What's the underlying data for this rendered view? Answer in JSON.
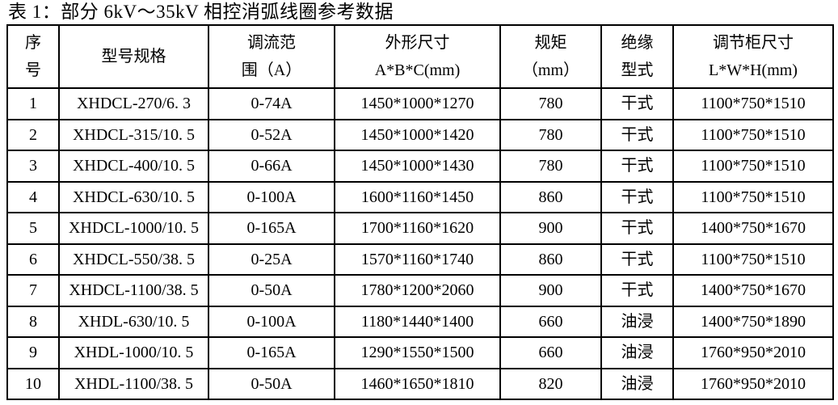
{
  "title": "表 1：部分 6kV～35kV 相控消弧线圈参考数据",
  "table": {
    "headers": [
      {
        "line1": "序",
        "line2": "号"
      },
      {
        "line1": "型号规格",
        "line2": ""
      },
      {
        "line1": "调流范",
        "line2": "围（A）"
      },
      {
        "line1": "外形尺寸",
        "line2": "A*B*C(mm)"
      },
      {
        "line1": "规矩",
        "line2": "（mm）"
      },
      {
        "line1": "绝缘",
        "line2": "型式"
      },
      {
        "line1": "调节柜尺寸",
        "line2": "L*W*H(mm)"
      }
    ],
    "rows": [
      [
        "1",
        "XHDCL-270/6. 3",
        "0-74A",
        "1450*1000*1270",
        "780",
        "干式",
        "1100*750*1510"
      ],
      [
        "2",
        "XHDCL-315/10. 5",
        "0-52A",
        "1450*1000*1420",
        "780",
        "干式",
        "1100*750*1510"
      ],
      [
        "3",
        "XHDCL-400/10. 5",
        "0-66A",
        "1450*1000*1430",
        "780",
        "干式",
        "1100*750*1510"
      ],
      [
        "4",
        "XHDCL-630/10. 5",
        "0-100A",
        "1600*1160*1450",
        "860",
        "干式",
        "1100*750*1510"
      ],
      [
        "5",
        "XHDCL-1000/10. 5",
        "0-165A",
        "1700*1160*1620",
        "900",
        "干式",
        "1400*750*1670"
      ],
      [
        "6",
        "XHDCL-550/38. 5",
        "0-25A",
        "1570*1160*1740",
        "860",
        "干式",
        "1100*750*1510"
      ],
      [
        "7",
        "XHDCL-1100/38. 5",
        "0-50A",
        "1780*1200*2060",
        "900",
        "干式",
        "1400*750*1670"
      ],
      [
        "8",
        "XHDL-630/10. 5",
        "0-100A",
        "1180*1440*1400",
        "660",
        "油浸",
        "1400*750*1890"
      ],
      [
        "9",
        "XHDL-1000/10. 5",
        "0-165A",
        "1290*1550*1500",
        "660",
        "油浸",
        "1760*950*2010"
      ],
      [
        "10",
        "XHDL-1100/38. 5",
        "0-50A",
        "1460*1650*1810",
        "820",
        "油浸",
        "1760*950*2010"
      ]
    ]
  },
  "colors": {
    "text": "#000000",
    "border": "#000000",
    "background": "#ffffff"
  }
}
